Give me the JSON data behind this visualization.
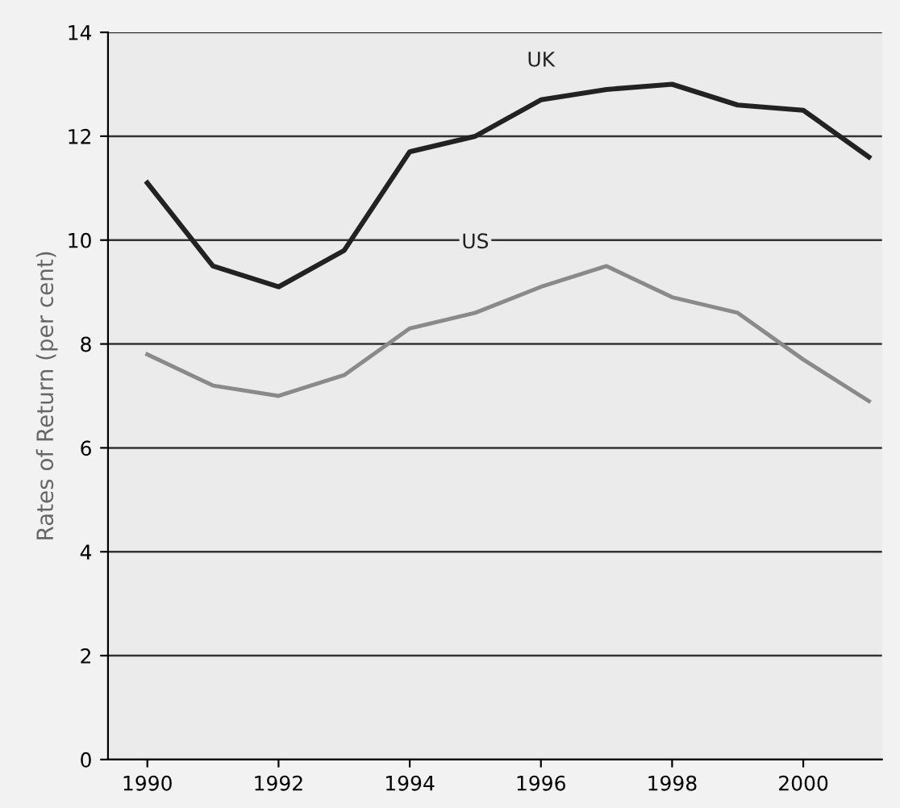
{
  "chart_data": {
    "type": "line",
    "ylabel": "Rates of Return (per cent)",
    "x": [
      1990,
      1991,
      1992,
      1993,
      1994,
      1995,
      1996,
      1997,
      1998,
      1999,
      2000,
      2001
    ],
    "series": [
      {
        "name": "UK",
        "color": "#222222",
        "values": [
          11.1,
          9.5,
          9.1,
          9.8,
          11.7,
          12.0,
          12.7,
          12.9,
          13.0,
          12.6,
          12.5,
          11.6
        ]
      },
      {
        "name": "US",
        "color": "#8a8a8a",
        "values": [
          7.8,
          7.2,
          7.0,
          7.4,
          8.3,
          8.6,
          9.1,
          9.5,
          8.9,
          8.6,
          7.7,
          6.9
        ]
      }
    ],
    "xlim": [
      1989.4,
      2001.2
    ],
    "xticks": [
      1990,
      1992,
      1994,
      1996,
      1998,
      2000
    ],
    "ylim": [
      0,
      14
    ],
    "yticks": [
      0,
      2,
      4,
      6,
      8,
      10,
      12,
      14
    ],
    "grid": "y",
    "legend": false,
    "marker": "none",
    "line_style": "solid"
  }
}
